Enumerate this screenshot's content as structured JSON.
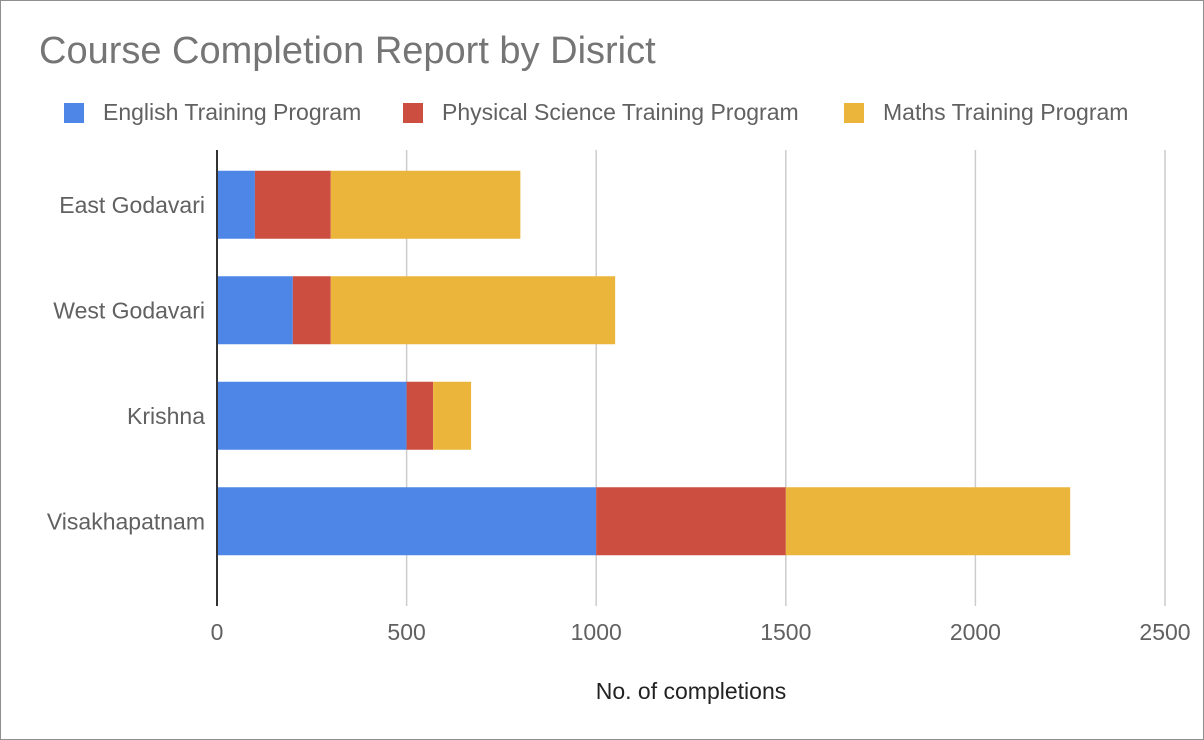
{
  "chart_data": {
    "type": "bar",
    "orientation": "horizontal",
    "stacked": true,
    "title": "Course Completion Report by Disrict",
    "xlabel": "No. of completions",
    "ylabel": "",
    "categories": [
      "East Godavari",
      "West Godavari",
      "Krishna",
      "Visakhapatnam"
    ],
    "series": [
      {
        "name": "English Training Program",
        "color": "#4e86e8",
        "values": [
          100,
          200,
          500,
          1000
        ]
      },
      {
        "name": "Physical Science Training Program",
        "color": "#cc4e40",
        "values": [
          200,
          100,
          70,
          500
        ]
      },
      {
        "name": "Maths Training Program",
        "color": "#ebb53c",
        "values": [
          500,
          750,
          100,
          750
        ]
      }
    ],
    "xlim": [
      0,
      2500
    ],
    "xticks": [
      0,
      500,
      1000,
      1500,
      2000,
      2500
    ],
    "grid": true,
    "legend_position": "top"
  }
}
